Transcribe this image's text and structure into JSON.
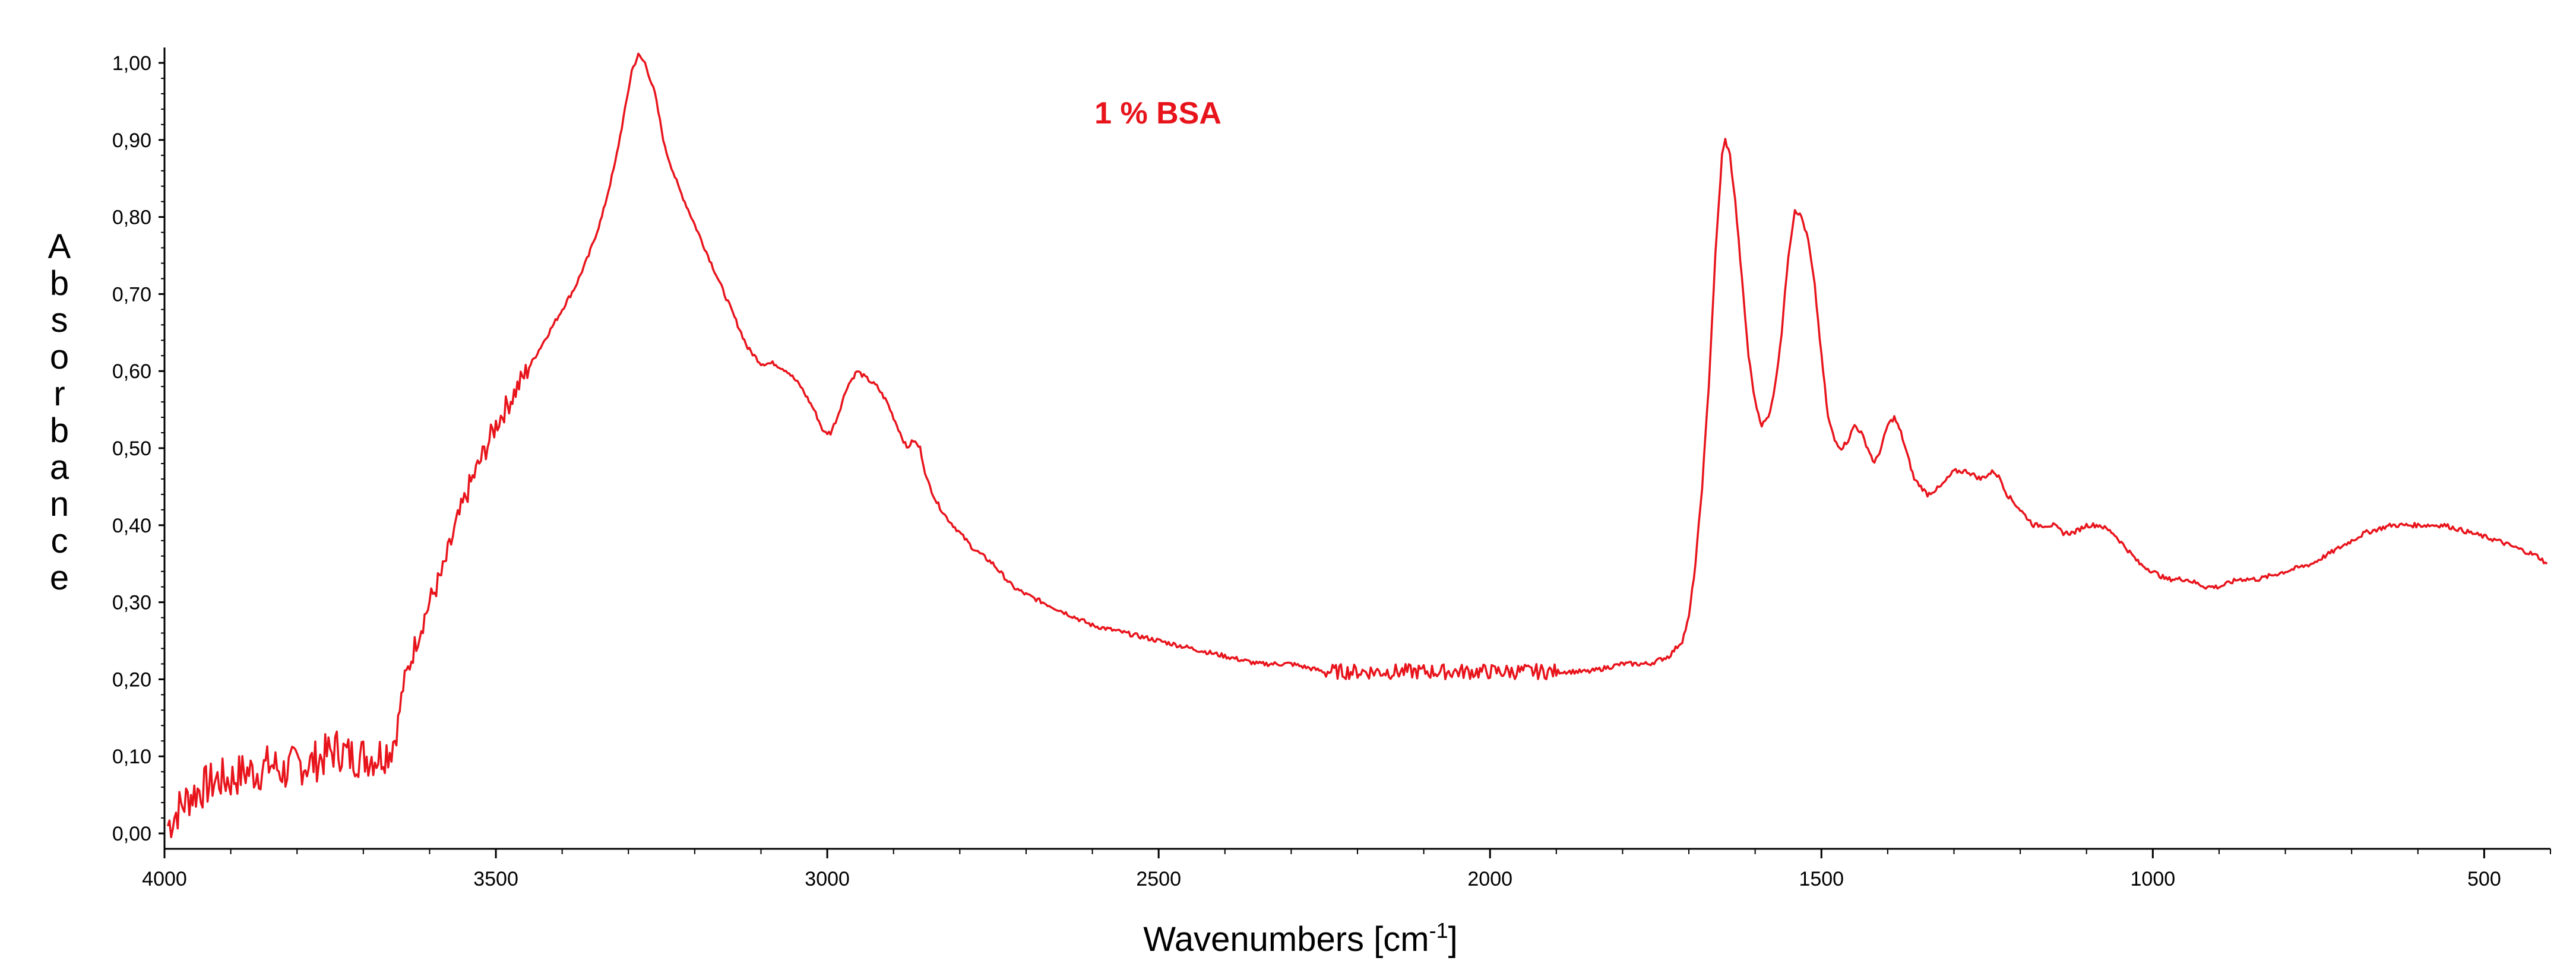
{
  "colors": {
    "series": "#e8141c",
    "title": "#e8141c",
    "axis": "#000000"
  },
  "chart_data": {
    "type": "line",
    "title": "1 % BSA",
    "xlabel": "Wavenumbers [cm",
    "xlabel_superscript": "-1",
    "xlabel_suffix": "]",
    "ylabel": "Absorbance",
    "xlim": [
      4000,
      400
    ],
    "ylim": [
      -0.02,
      1.02
    ],
    "x_ticks": [
      4000,
      3500,
      3000,
      2500,
      2000,
      1500,
      1000,
      500
    ],
    "x_tick_labels": [
      "4000",
      "3500",
      "3000",
      "2500",
      "2000",
      "1500",
      "1000",
      "500"
    ],
    "y_ticks": [
      0.0,
      0.1,
      0.2,
      0.3,
      0.4,
      0.5,
      0.6,
      0.7,
      0.8,
      0.9,
      1.0
    ],
    "y_tick_labels": [
      "0,00",
      "0,10",
      "0,20",
      "0,30",
      "0,40",
      "0,50",
      "0,60",
      "0,70",
      "0,80",
      "0,90",
      "1,00"
    ],
    "grid": false,
    "series": [
      {
        "name": "1 % BSA",
        "points": [
          [
            3995,
            0.01
          ],
          [
            3980,
            0.03
          ],
          [
            3960,
            0.05
          ],
          [
            3940,
            0.06
          ],
          [
            3920,
            0.07
          ],
          [
            3900,
            0.07
          ],
          [
            3880,
            0.08
          ],
          [
            3860,
            0.08
          ],
          [
            3840,
            0.09
          ],
          [
            3820,
            0.08
          ],
          [
            3800,
            0.09
          ],
          [
            3780,
            0.09
          ],
          [
            3760,
            0.1
          ],
          [
            3740,
            0.11
          ],
          [
            3720,
            0.1
          ],
          [
            3700,
            0.1
          ],
          [
            3680,
            0.1
          ],
          [
            3660,
            0.11
          ],
          [
            3650,
            0.13
          ],
          [
            3640,
            0.19
          ],
          [
            3630,
            0.22
          ],
          [
            3620,
            0.25
          ],
          [
            3600,
            0.3
          ],
          [
            3580,
            0.34
          ],
          [
            3560,
            0.4
          ],
          [
            3540,
            0.45
          ],
          [
            3520,
            0.49
          ],
          [
            3500,
            0.53
          ],
          [
            3480,
            0.56
          ],
          [
            3460,
            0.59
          ],
          [
            3440,
            0.62
          ],
          [
            3420,
            0.65
          ],
          [
            3400,
            0.68
          ],
          [
            3380,
            0.71
          ],
          [
            3360,
            0.75
          ],
          [
            3340,
            0.8
          ],
          [
            3320,
            0.87
          ],
          [
            3305,
            0.94
          ],
          [
            3295,
            0.99
          ],
          [
            3285,
            1.01
          ],
          [
            3275,
            1.0
          ],
          [
            3260,
            0.96
          ],
          [
            3245,
            0.89
          ],
          [
            3225,
            0.84
          ],
          [
            3200,
            0.79
          ],
          [
            3180,
            0.75
          ],
          [
            3160,
            0.71
          ],
          [
            3140,
            0.67
          ],
          [
            3120,
            0.63
          ],
          [
            3100,
            0.61
          ],
          [
            3080,
            0.61
          ],
          [
            3060,
            0.6
          ],
          [
            3040,
            0.58
          ],
          [
            3020,
            0.55
          ],
          [
            3005,
            0.52
          ],
          [
            2995,
            0.52
          ],
          [
            2985,
            0.54
          ],
          [
            2970,
            0.58
          ],
          [
            2955,
            0.6
          ],
          [
            2940,
            0.59
          ],
          [
            2925,
            0.58
          ],
          [
            2910,
            0.56
          ],
          [
            2895,
            0.53
          ],
          [
            2880,
            0.5
          ],
          [
            2870,
            0.51
          ],
          [
            2860,
            0.5
          ],
          [
            2850,
            0.46
          ],
          [
            2835,
            0.43
          ],
          [
            2820,
            0.41
          ],
          [
            2800,
            0.39
          ],
          [
            2780,
            0.37
          ],
          [
            2750,
            0.35
          ],
          [
            2720,
            0.32
          ],
          [
            2700,
            0.31
          ],
          [
            2650,
            0.29
          ],
          [
            2600,
            0.27
          ],
          [
            2550,
            0.26
          ],
          [
            2500,
            0.25
          ],
          [
            2450,
            0.24
          ],
          [
            2400,
            0.23
          ],
          [
            2350,
            0.22
          ],
          [
            2300,
            0.22
          ],
          [
            2250,
            0.21
          ],
          [
            2200,
            0.21
          ],
          [
            2150,
            0.21
          ],
          [
            2100,
            0.21
          ],
          [
            2050,
            0.21
          ],
          [
            2000,
            0.21
          ],
          [
            1950,
            0.21
          ],
          [
            1900,
            0.21
          ],
          [
            1850,
            0.21
          ],
          [
            1800,
            0.22
          ],
          [
            1760,
            0.22
          ],
          [
            1730,
            0.23
          ],
          [
            1710,
            0.25
          ],
          [
            1700,
            0.28
          ],
          [
            1690,
            0.35
          ],
          [
            1680,
            0.45
          ],
          [
            1670,
            0.58
          ],
          [
            1660,
            0.75
          ],
          [
            1650,
            0.88
          ],
          [
            1645,
            0.9
          ],
          [
            1638,
            0.88
          ],
          [
            1630,
            0.82
          ],
          [
            1620,
            0.72
          ],
          [
            1610,
            0.62
          ],
          [
            1600,
            0.56
          ],
          [
            1590,
            0.53
          ],
          [
            1580,
            0.54
          ],
          [
            1570,
            0.58
          ],
          [
            1560,
            0.65
          ],
          [
            1550,
            0.75
          ],
          [
            1540,
            0.81
          ],
          [
            1530,
            0.8
          ],
          [
            1520,
            0.77
          ],
          [
            1510,
            0.71
          ],
          [
            1500,
            0.62
          ],
          [
            1490,
            0.54
          ],
          [
            1480,
            0.51
          ],
          [
            1470,
            0.5
          ],
          [
            1460,
            0.51
          ],
          [
            1450,
            0.53
          ],
          [
            1440,
            0.52
          ],
          [
            1430,
            0.5
          ],
          [
            1420,
            0.48
          ],
          [
            1410,
            0.5
          ],
          [
            1400,
            0.53
          ],
          [
            1390,
            0.54
          ],
          [
            1380,
            0.52
          ],
          [
            1370,
            0.49
          ],
          [
            1360,
            0.46
          ],
          [
            1350,
            0.45
          ],
          [
            1340,
            0.44
          ],
          [
            1320,
            0.45
          ],
          [
            1300,
            0.47
          ],
          [
            1280,
            0.47
          ],
          [
            1260,
            0.46
          ],
          [
            1240,
            0.47
          ],
          [
            1230,
            0.46
          ],
          [
            1220,
            0.44
          ],
          [
            1200,
            0.42
          ],
          [
            1180,
            0.4
          ],
          [
            1165,
            0.4
          ],
          [
            1150,
            0.4
          ],
          [
            1135,
            0.39
          ],
          [
            1120,
            0.39
          ],
          [
            1100,
            0.4
          ],
          [
            1080,
            0.4
          ],
          [
            1060,
            0.39
          ],
          [
            1040,
            0.37
          ],
          [
            1020,
            0.35
          ],
          [
            1000,
            0.34
          ],
          [
            980,
            0.33
          ],
          [
            950,
            0.33
          ],
          [
            920,
            0.32
          ],
          [
            900,
            0.32
          ],
          [
            870,
            0.33
          ],
          [
            840,
            0.33
          ],
          [
            800,
            0.34
          ],
          [
            760,
            0.35
          ],
          [
            720,
            0.37
          ],
          [
            680,
            0.39
          ],
          [
            640,
            0.4
          ],
          [
            600,
            0.4
          ],
          [
            560,
            0.4
          ],
          [
            520,
            0.39
          ],
          [
            480,
            0.38
          ],
          [
            450,
            0.37
          ],
          [
            420,
            0.36
          ],
          [
            405,
            0.35
          ]
        ]
      }
    ]
  }
}
